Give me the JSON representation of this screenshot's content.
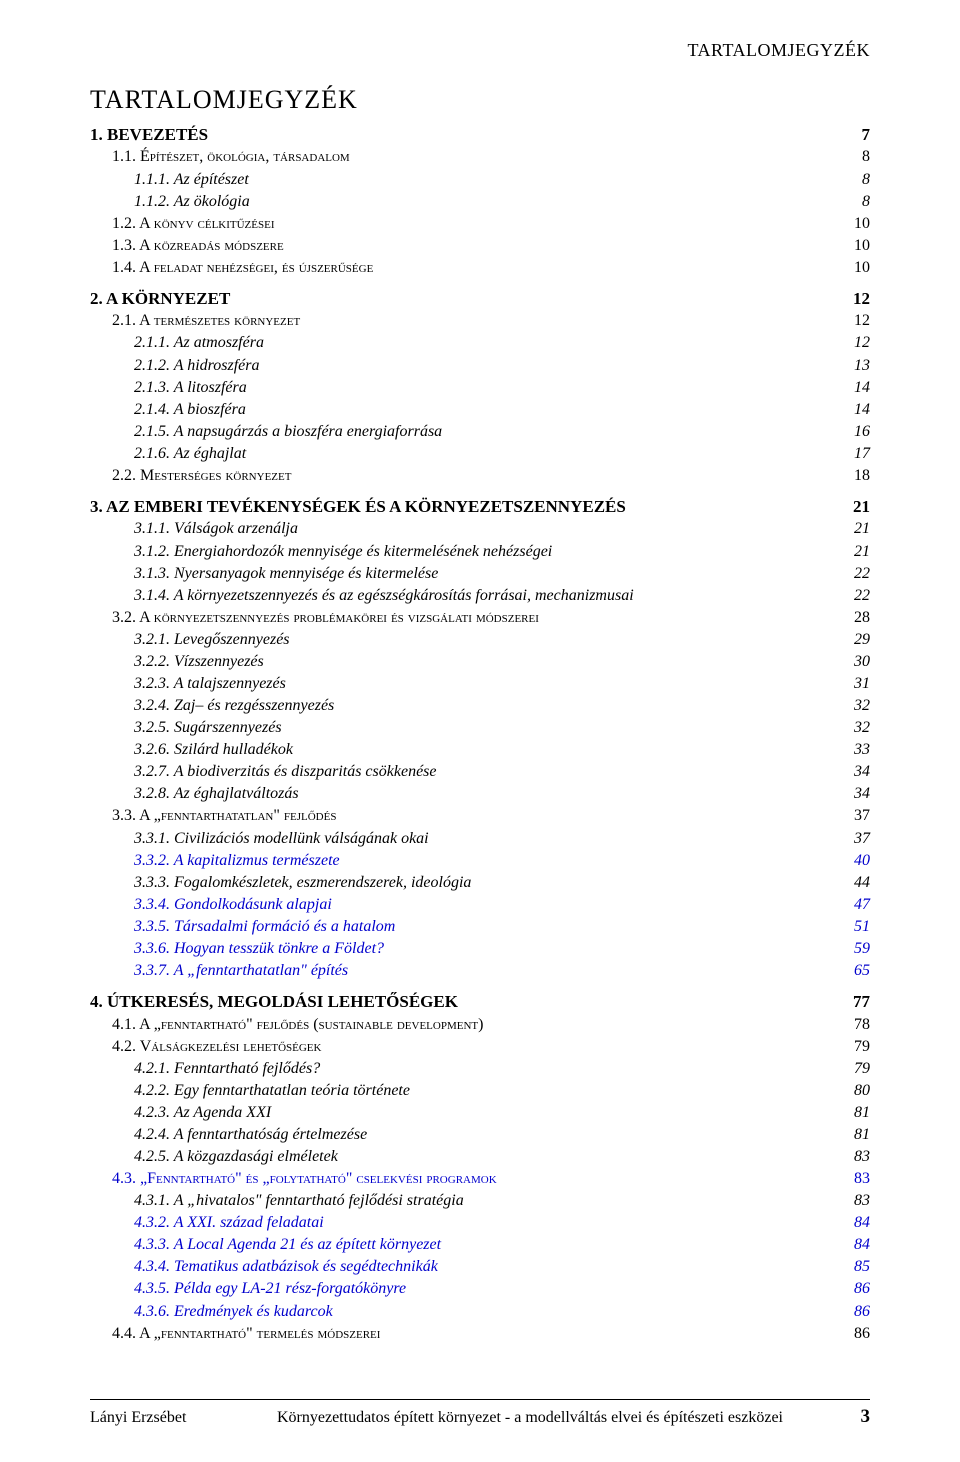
{
  "running_header": "TARTALOMJEGYZÉK",
  "title": "TARTALOMJEGYZÉK",
  "footer": {
    "author": "Lányi Erzsébet",
    "doc_title": "Környezettudatos épített környezet - a modellváltás elvei és építészeti eszközei",
    "page_number": "3"
  },
  "entries": [
    {
      "level": 0,
      "label": "1. BEVEZETÉS",
      "page": "7"
    },
    {
      "level": 1,
      "label": "1.1. Építészet, ökológia, társadalom",
      "page": "8"
    },
    {
      "level": 2,
      "label": "1.1.1. Az építészet",
      "page": "8"
    },
    {
      "level": 2,
      "label": "1.1.2. Az ökológia",
      "page": "8"
    },
    {
      "level": 1,
      "label": "1.2. A könyv célkitűzései",
      "page": "10"
    },
    {
      "level": 1,
      "label": "1.3. A közreadás módszere",
      "page": "10"
    },
    {
      "level": 1,
      "label": "1.4. A feladat nehézségei, és újszerűsége",
      "page": "10"
    },
    {
      "level": 0,
      "label": "2. A KÖRNYEZET",
      "page": "12"
    },
    {
      "level": 1,
      "label": "2.1. A természetes környezet",
      "page": "12"
    },
    {
      "level": 2,
      "label": "2.1.1. Az atmoszféra",
      "page": "12"
    },
    {
      "level": 2,
      "label": "2.1.2. A hidroszféra",
      "page": "13"
    },
    {
      "level": 2,
      "label": "2.1.3. A litoszféra",
      "page": "14"
    },
    {
      "level": 2,
      "label": "2.1.4. A bioszféra",
      "page": "14"
    },
    {
      "level": 2,
      "label": "2.1.5. A napsugárzás a bioszféra energiaforrása",
      "page": "16"
    },
    {
      "level": 2,
      "label": "2.1.6. Az éghajlat",
      "page": "17"
    },
    {
      "level": 1,
      "label": "2.2. Mesterséges környezet",
      "page": "18"
    },
    {
      "level": 0,
      "label": "3. AZ EMBERI TEVÉKENYSÉGEK ÉS A KÖRNYEZETSZENNYEZÉS",
      "page": "21"
    },
    {
      "level": 2,
      "label": "3.1.1. Válságok arzenálja",
      "page": "21"
    },
    {
      "level": 2,
      "label": "3.1.2. Energiahordozók mennyisége és kitermelésének nehézségei",
      "page": "21"
    },
    {
      "level": 2,
      "label": "3.1.3. Nyersanyagok mennyisége és kitermelése",
      "page": "22"
    },
    {
      "level": 2,
      "label": "3.1.4. A környezetszennyezés és az egészségkárosítás forrásai, mechanizmusai",
      "page": "22"
    },
    {
      "level": 1,
      "label": "3.2. A környezetszennyezés problémakörei és vizsgálati módszerei",
      "page": "28"
    },
    {
      "level": 2,
      "label": "3.2.1. Levegőszennyezés",
      "page": "29"
    },
    {
      "level": 2,
      "label": "3.2.2. Vízszennyezés",
      "page": "30"
    },
    {
      "level": 2,
      "label": "3.2.3. A talajszennyezés",
      "page": "31"
    },
    {
      "level": 2,
      "label": "3.2.4. Zaj– és rezgésszennyezés",
      "page": "32"
    },
    {
      "level": 2,
      "label": "3.2.5. Sugárszennyezés",
      "page": "32"
    },
    {
      "level": 2,
      "label": "3.2.6. Szilárd hulladékok",
      "page": "33"
    },
    {
      "level": 2,
      "label": "3.2.7. A biodiverzitás és diszparitás csökkenése",
      "page": "34"
    },
    {
      "level": 2,
      "label": "3.2.8. Az éghajlatváltozás",
      "page": "34"
    },
    {
      "level": 1,
      "label": "3.3. A „fenntarthatatlan\" fejlődés",
      "page": "37"
    },
    {
      "level": 2,
      "label": "3.3.1. Civilizációs modellünk válságának okai",
      "page": "37"
    },
    {
      "level": 2,
      "blue": true,
      "label": "3.3.2. A kapitalizmus természete",
      "page": "40"
    },
    {
      "level": 2,
      "label": "3.3.3. Fogalomkészletek, eszmerendszerek, ideológia",
      "page": "44"
    },
    {
      "level": 2,
      "blue": true,
      "label": "3.3.4. Gondolkodásunk alapjai",
      "page": "47"
    },
    {
      "level": 2,
      "blue": true,
      "label": "3.3.5. Társadalmi formáció és a hatalom",
      "page": "51"
    },
    {
      "level": 2,
      "blue": true,
      "label": "3.3.6. Hogyan tesszük tönkre a Földet?",
      "page": "59"
    },
    {
      "level": 2,
      "blue": true,
      "label": "3.3.7. A „fenntarthatatlan\" építés",
      "page": "65"
    },
    {
      "level": 0,
      "label": "4. ÚTKERESÉS, MEGOLDÁSI LEHETŐSÉGEK",
      "page": "77"
    },
    {
      "level": 1,
      "label": "4.1. A „fenntartható\" fejlődés (sustainable development)",
      "page": "78"
    },
    {
      "level": 1,
      "label": "4.2. Válságkezelési lehetőségek",
      "page": "79"
    },
    {
      "level": 2,
      "label": "4.2.1. Fenntartható fejlődés?",
      "page": "79"
    },
    {
      "level": 2,
      "label": "4.2.2. Egy fenntarthatatlan teória története",
      "page": "80"
    },
    {
      "level": 2,
      "label": "4.2.3. Az Agenda XXI",
      "page": "81"
    },
    {
      "level": 2,
      "label": "4.2.4. A fenntarthatóság értelmezése",
      "page": "81"
    },
    {
      "level": 2,
      "label": "4.2.5. A közgazdasági elméletek",
      "page": "83"
    },
    {
      "level": 1,
      "blue": true,
      "label": "4.3. „Fenntartható\" és „folytatható\" cselekvési programok",
      "page": "83"
    },
    {
      "level": 2,
      "label": "4.3.1. A „hivatalos\" fenntartható fejlődési stratégia",
      "page": "83"
    },
    {
      "level": 2,
      "blue": true,
      "label": "4.3.2. A XXI. század feladatai",
      "page": "84"
    },
    {
      "level": 2,
      "blue": true,
      "label": "4.3.3. A Local Agenda 21 és az épített környezet",
      "page": "84"
    },
    {
      "level": 2,
      "blue": true,
      "label": "4.3.4. Tematikus adatbázisok és segédtechnikák",
      "page": "85"
    },
    {
      "level": 2,
      "blue": true,
      "label": "4.3.5. Példa egy LA-21 rész-forgatókönyre",
      "page": "86"
    },
    {
      "level": 2,
      "blue": true,
      "label": "4.3.6. Eredmények és kudarcok",
      "page": "86"
    },
    {
      "level": 1,
      "label": "4.4. A „fenntartható\" termelés módszerei",
      "page": "86"
    }
  ]
}
